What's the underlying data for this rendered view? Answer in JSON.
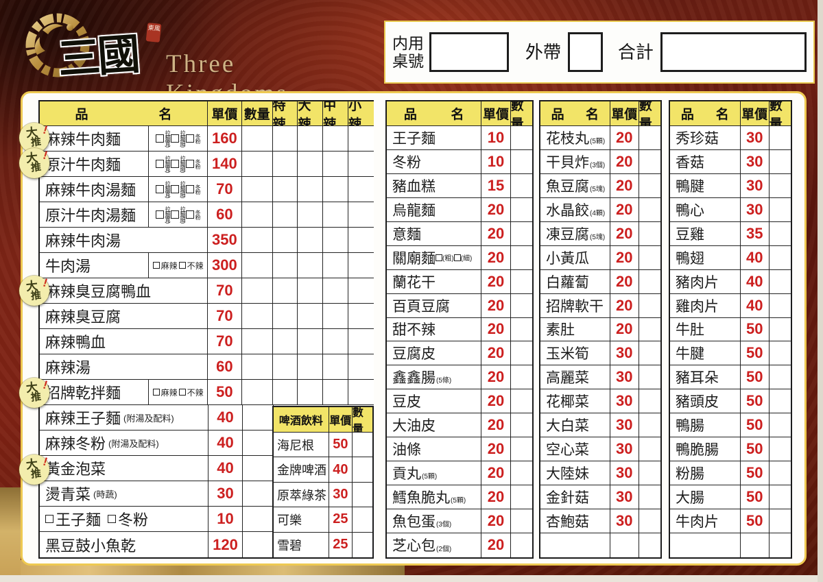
{
  "brand": {
    "name_cn": "三國",
    "seal": "東風",
    "name_en": "Three Kingdoms"
  },
  "order_box": {
    "dine_in_line1": "内用",
    "dine_in_line2": "桌號",
    "takeout_label": "外帶",
    "total_label": "合計"
  },
  "badge": {
    "label_1": "大",
    "label_2": "推",
    "mark": "!"
  },
  "colors": {
    "header_yellow": "#f2e468",
    "price_red": "#cc1f1f",
    "frame_maroon": "#7c2416",
    "gold": "#c9a257",
    "panel_keyline": "#eec951",
    "badge_bg": "#f3edad"
  },
  "left_table": {
    "header": {
      "col_item_1": "品",
      "col_item_2": "名",
      "col_price": "單價",
      "col_qty": "數量",
      "col_spice": [
        "特辣",
        "大辣",
        "中辣",
        "小辣"
      ]
    },
    "noodle_options": [
      "拉麵(寬)",
      "拉麵(細)",
      "冬粉"
    ],
    "spice_pair": [
      "麻辣",
      "不辣"
    ],
    "rows": [
      {
        "name": "麻辣牛肉麵",
        "opt": "noodle",
        "price": "160",
        "badge": true
      },
      {
        "name": "原汁牛肉麵",
        "opt": "noodle",
        "price": "140",
        "badge": true
      },
      {
        "name": "麻辣牛肉湯麵",
        "opt": "noodle",
        "price": "70"
      },
      {
        "name": "原汁牛肉湯麵",
        "opt": "noodle",
        "price": "60"
      },
      {
        "name": "麻辣牛肉湯",
        "price": "350"
      },
      {
        "name": "牛肉湯",
        "opt": "spice",
        "price": "300"
      },
      {
        "name": "麻辣臭豆腐鴨血",
        "price": "70",
        "badge": true
      },
      {
        "name": "麻辣臭豆腐",
        "price": "70"
      },
      {
        "name": "麻辣鴨血",
        "price": "70"
      },
      {
        "name": "麻辣湯",
        "price": "60"
      },
      {
        "name": "招牌乾拌麵",
        "opt": "spice",
        "price": "50",
        "badge": true
      },
      {
        "name": "麻辣王子麵",
        "note": "(附湯及配料)",
        "price": "40"
      },
      {
        "name": "麻辣冬粉",
        "note": "(附湯及配料)",
        "price": "40"
      },
      {
        "name": "黃金泡菜",
        "price": "40",
        "badge": true
      },
      {
        "name": "燙青菜",
        "note": "(時蔬)",
        "price": "30"
      },
      {
        "name": "",
        "pair": [
          "王子麵",
          "冬粉"
        ],
        "price": "10"
      },
      {
        "name": "黑豆鼓小魚乾",
        "price": "120"
      }
    ]
  },
  "drinks_table": {
    "header": [
      "啤酒飲料",
      "單價",
      "數量"
    ],
    "rows": [
      {
        "name": "海尼根",
        "price": "50"
      },
      {
        "name": "金牌啤酒",
        "price": "40"
      },
      {
        "name": "原萃綠茶",
        "price": "30"
      },
      {
        "name": "可樂",
        "price": "25"
      },
      {
        "name": "雪碧",
        "price": "25"
      }
    ]
  },
  "item_header": {
    "col_item_1": "品",
    "col_item_2": "名",
    "col_price": "單價",
    "col_qty": "數量"
  },
  "table_2": {
    "rows": [
      {
        "name": "王子麵",
        "price": "10"
      },
      {
        "name": "冬粉",
        "price": "10"
      },
      {
        "name": "豬血糕",
        "price": "15"
      },
      {
        "name": "烏龍麵",
        "price": "20"
      },
      {
        "name": "意麵",
        "price": "20"
      },
      {
        "name": "關廟麵",
        "boxes": [
          "(粗)",
          "(細)"
        ],
        "price": "20"
      },
      {
        "name": "蘭花干",
        "price": "20"
      },
      {
        "name": "百頁豆腐",
        "price": "20"
      },
      {
        "name": "甜不辣",
        "price": "20"
      },
      {
        "name": "豆腐皮",
        "price": "20"
      },
      {
        "name": "鑫鑫腸",
        "small": "(5條)",
        "price": "20"
      },
      {
        "name": "豆皮",
        "price": "20"
      },
      {
        "name": "大油皮",
        "price": "20"
      },
      {
        "name": "油條",
        "price": "20"
      },
      {
        "name": "貢丸",
        "small": "(5顆)",
        "price": "20"
      },
      {
        "name": "鱈魚脆丸",
        "small": "(5顆)",
        "price": "20"
      },
      {
        "name": "魚包蛋",
        "small": "(3個)",
        "price": "20"
      },
      {
        "name": "芝心包",
        "small": "(2個)",
        "price": "20"
      }
    ]
  },
  "table_3": {
    "rows": [
      {
        "name": "花枝丸",
        "small": "(5顆)",
        "price": "20"
      },
      {
        "name": "干貝炸",
        "small": "(3個)",
        "price": "20"
      },
      {
        "name": "魚豆腐",
        "small": "(5塊)",
        "price": "20"
      },
      {
        "name": "水晶餃",
        "small": "(4顆)",
        "price": "20"
      },
      {
        "name": "凍豆腐",
        "small": "(5塊)",
        "price": "20"
      },
      {
        "name": "小黃瓜",
        "price": "20"
      },
      {
        "name": "白蘿蔔",
        "price": "20"
      },
      {
        "name": "招牌軟干",
        "price": "20"
      },
      {
        "name": "素肚",
        "price": "20"
      },
      {
        "name": "玉米筍",
        "price": "30"
      },
      {
        "name": "高麗菜",
        "price": "30"
      },
      {
        "name": "花椰菜",
        "price": "30"
      },
      {
        "name": "大白菜",
        "price": "30"
      },
      {
        "name": "空心菜",
        "price": "30"
      },
      {
        "name": "大陸妹",
        "price": "30"
      },
      {
        "name": "金針菇",
        "price": "30"
      },
      {
        "name": "杏鮑菇",
        "price": "30"
      },
      {
        "name": "",
        "price": ""
      }
    ]
  },
  "table_4": {
    "rows": [
      {
        "name": "秀珍菇",
        "price": "30"
      },
      {
        "name": "香菇",
        "price": "30"
      },
      {
        "name": "鴨腱",
        "price": "30"
      },
      {
        "name": "鴨心",
        "price": "30"
      },
      {
        "name": "豆雞",
        "price": "35"
      },
      {
        "name": "鴨翅",
        "price": "40"
      },
      {
        "name": "豬肉片",
        "price": "40"
      },
      {
        "name": "雞肉片",
        "price": "40"
      },
      {
        "name": "牛肚",
        "price": "50"
      },
      {
        "name": "牛腱",
        "price": "50"
      },
      {
        "name": "豬耳朵",
        "price": "50"
      },
      {
        "name": "豬頭皮",
        "price": "50"
      },
      {
        "name": "鴨腸",
        "price": "50"
      },
      {
        "name": "鴨脆腸",
        "price": "50"
      },
      {
        "name": "粉腸",
        "price": "50"
      },
      {
        "name": "大腸",
        "price": "50"
      },
      {
        "name": "牛肉片",
        "price": "50"
      },
      {
        "name": "",
        "price": ""
      }
    ]
  }
}
